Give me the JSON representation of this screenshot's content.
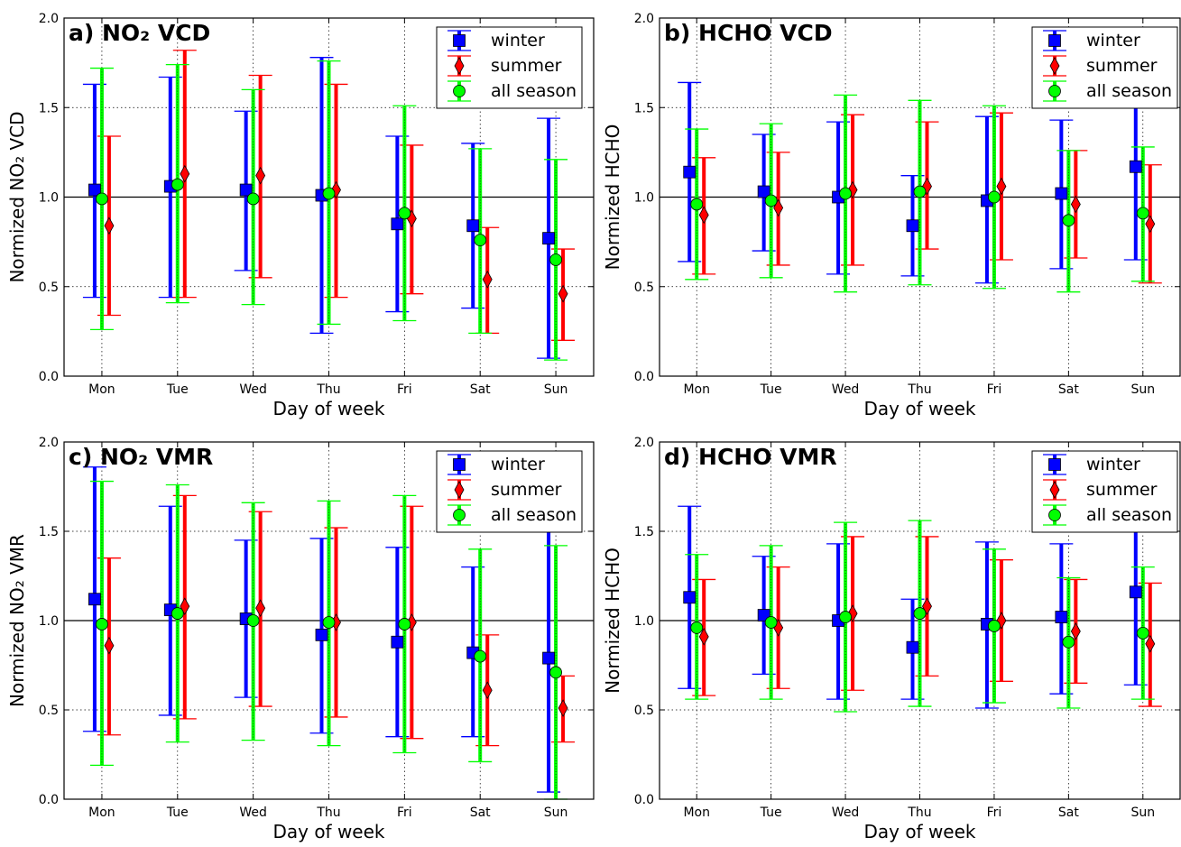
{
  "chart_data": [
    {
      "type": "scatter",
      "title": "a) NO₂ VCD",
      "xlabel": "Day of week",
      "ylabel": "Normized NO₂ VCD",
      "categories": [
        "Mon",
        "Tue",
        "Wed",
        "Thu",
        "Fri",
        "Sat",
        "Sun"
      ],
      "ylim": [
        0,
        2
      ],
      "yticks": [
        "0.0",
        "0.5",
        "1.0",
        "1.5",
        "2.0"
      ],
      "reference_line": 1.0,
      "grid": "dotted",
      "legend": "top-right",
      "series": [
        {
          "name": "winter",
          "color": "#0000ff",
          "marker": "square",
          "values": [
            1.04,
            1.06,
            1.04,
            1.01,
            0.85,
            0.84,
            0.77
          ],
          "lower": [
            0.44,
            0.44,
            0.59,
            0.24,
            0.36,
            0.38,
            0.1
          ],
          "upper": [
            1.63,
            1.67,
            1.48,
            1.78,
            1.34,
            1.3,
            1.44
          ]
        },
        {
          "name": "summer",
          "color": "#ff0000",
          "marker": "diamond",
          "values": [
            0.84,
            1.13,
            1.12,
            1.04,
            0.88,
            0.54,
            0.46
          ],
          "lower": [
            0.34,
            0.44,
            0.55,
            0.44,
            0.46,
            0.24,
            0.2
          ],
          "upper": [
            1.34,
            1.82,
            1.68,
            1.63,
            1.29,
            0.83,
            0.71
          ]
        },
        {
          "name": "all season",
          "color": "#00ff00",
          "marker": "circle",
          "values": [
            0.99,
            1.07,
            0.99,
            1.02,
            0.91,
            0.76,
            0.65
          ],
          "lower": [
            0.26,
            0.41,
            0.4,
            0.29,
            0.31,
            0.24,
            0.09
          ],
          "upper": [
            1.72,
            1.74,
            1.6,
            1.76,
            1.51,
            1.27,
            1.21
          ]
        }
      ]
    },
    {
      "type": "scatter",
      "title": "b) HCHO VCD",
      "xlabel": "Day of week",
      "ylabel": "Normized HCHO",
      "categories": [
        "Mon",
        "Tue",
        "Wed",
        "Thu",
        "Fri",
        "Sat",
        "Sun"
      ],
      "ylim": [
        0,
        2
      ],
      "yticks": [
        "0.0",
        "0.5",
        "1.0",
        "1.5",
        "2.0"
      ],
      "reference_line": 1.0,
      "grid": "dotted",
      "legend": "top-right",
      "series": [
        {
          "name": "winter",
          "color": "#0000ff",
          "marker": "square",
          "values": [
            1.14,
            1.03,
            1.0,
            0.84,
            0.98,
            1.02,
            1.17
          ],
          "lower": [
            0.64,
            0.7,
            0.57,
            0.56,
            0.52,
            0.6,
            0.65
          ],
          "upper": [
            1.64,
            1.35,
            1.42,
            1.12,
            1.45,
            1.43,
            1.69
          ]
        },
        {
          "name": "summer",
          "color": "#ff0000",
          "marker": "diamond",
          "values": [
            0.9,
            0.94,
            1.04,
            1.06,
            1.06,
            0.96,
            0.85
          ],
          "lower": [
            0.57,
            0.62,
            0.62,
            0.71,
            0.65,
            0.66,
            0.52
          ],
          "upper": [
            1.22,
            1.25,
            1.46,
            1.42,
            1.47,
            1.26,
            1.18
          ]
        },
        {
          "name": "all season",
          "color": "#00ff00",
          "marker": "circle",
          "values": [
            0.96,
            0.98,
            1.02,
            1.03,
            1.0,
            0.87,
            0.91
          ],
          "lower": [
            0.54,
            0.55,
            0.47,
            0.51,
            0.49,
            0.47,
            0.53
          ],
          "upper": [
            1.38,
            1.41,
            1.57,
            1.54,
            1.51,
            1.26,
            1.28
          ]
        }
      ]
    },
    {
      "type": "scatter",
      "title": "c) NO₂ VMR",
      "xlabel": "Day of week",
      "ylabel": "Normized NO₂ VMR",
      "categories": [
        "Mon",
        "Tue",
        "Wed",
        "Thu",
        "Fri",
        "Sat",
        "Sun"
      ],
      "ylim": [
        0,
        2
      ],
      "yticks": [
        "0.0",
        "0.5",
        "1.0",
        "1.5",
        "2.0"
      ],
      "reference_line": 1.0,
      "grid": "dotted",
      "legend": "top-right",
      "series": [
        {
          "name": "winter",
          "color": "#0000ff",
          "marker": "square",
          "values": [
            1.12,
            1.06,
            1.01,
            0.92,
            0.88,
            0.82,
            0.79
          ],
          "lower": [
            0.38,
            0.47,
            0.57,
            0.37,
            0.35,
            0.35,
            0.04
          ],
          "upper": [
            1.86,
            1.64,
            1.45,
            1.46,
            1.41,
            1.3,
            1.54
          ]
        },
        {
          "name": "summer",
          "color": "#ff0000",
          "marker": "diamond",
          "values": [
            0.86,
            1.08,
            1.07,
            0.99,
            0.99,
            0.61,
            0.51
          ],
          "lower": [
            0.36,
            0.45,
            0.52,
            0.46,
            0.34,
            0.3,
            0.32
          ],
          "upper": [
            1.35,
            1.7,
            1.61,
            1.52,
            1.64,
            0.92,
            0.69
          ]
        },
        {
          "name": "all season",
          "color": "#00ff00",
          "marker": "circle",
          "values": [
            0.98,
            1.04,
            1.0,
            0.99,
            0.98,
            0.8,
            0.71
          ],
          "lower": [
            0.19,
            0.32,
            0.33,
            0.3,
            0.26,
            0.21,
            0.0
          ],
          "upper": [
            1.78,
            1.76,
            1.66,
            1.67,
            1.7,
            1.4,
            1.42
          ]
        }
      ]
    },
    {
      "type": "scatter",
      "title": "d) HCHO VMR",
      "xlabel": "Day of week",
      "ylabel": "Normized HCHO",
      "categories": [
        "Mon",
        "Tue",
        "Wed",
        "Thu",
        "Fri",
        "Sat",
        "Sun"
      ],
      "ylim": [
        0,
        2
      ],
      "yticks": [
        "0.0",
        "0.5",
        "1.0",
        "1.5",
        "2.0"
      ],
      "reference_line": 1.0,
      "grid": "dotted",
      "legend": "top-right",
      "series": [
        {
          "name": "winter",
          "color": "#0000ff",
          "marker": "square",
          "values": [
            1.13,
            1.03,
            1.0,
            0.85,
            0.98,
            1.02,
            1.16
          ],
          "lower": [
            0.62,
            0.7,
            0.56,
            0.56,
            0.51,
            0.59,
            0.64
          ],
          "upper": [
            1.64,
            1.36,
            1.43,
            1.12,
            1.44,
            1.43,
            1.68
          ]
        },
        {
          "name": "summer",
          "color": "#ff0000",
          "marker": "diamond",
          "values": [
            0.91,
            0.96,
            1.04,
            1.08,
            1.0,
            0.94,
            0.87
          ],
          "lower": [
            0.58,
            0.62,
            0.61,
            0.69,
            0.66,
            0.65,
            0.52
          ],
          "upper": [
            1.23,
            1.3,
            1.47,
            1.47,
            1.34,
            1.23,
            1.21
          ]
        },
        {
          "name": "all season",
          "color": "#00ff00",
          "marker": "circle",
          "values": [
            0.96,
            0.99,
            1.02,
            1.04,
            0.97,
            0.88,
            0.93
          ],
          "lower": [
            0.56,
            0.56,
            0.49,
            0.52,
            0.54,
            0.51,
            0.56
          ],
          "upper": [
            1.37,
            1.42,
            1.55,
            1.56,
            1.4,
            1.24,
            1.3
          ]
        }
      ]
    }
  ]
}
